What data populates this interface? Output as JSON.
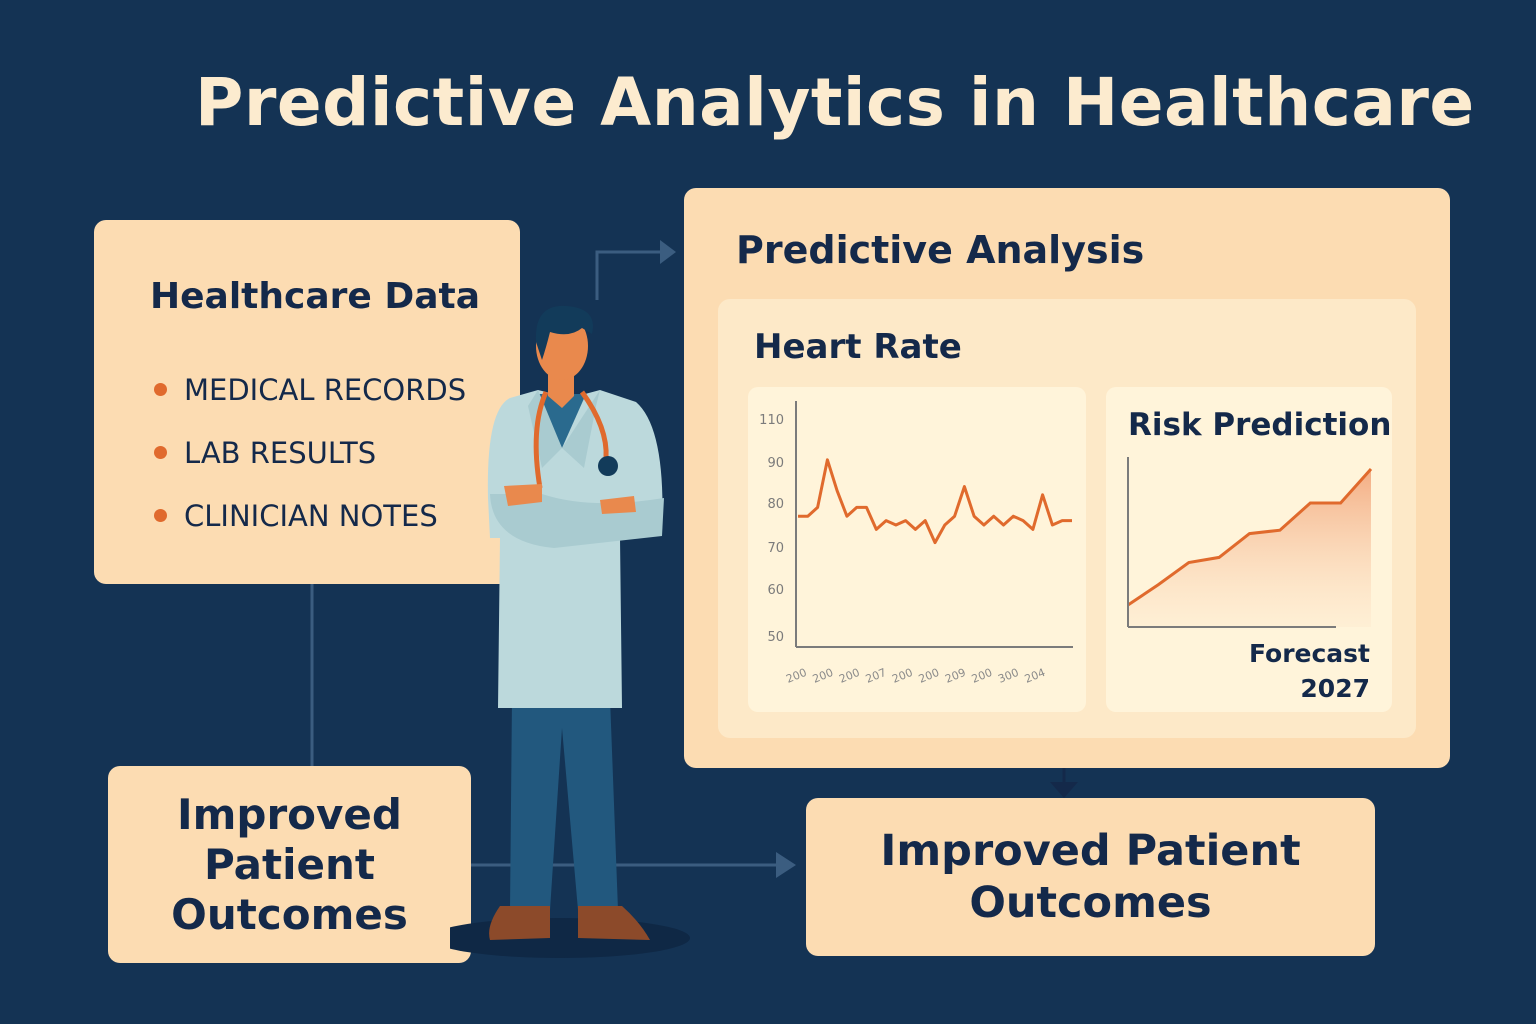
{
  "title": "Predictive Analytics in Healthcare",
  "data_card": {
    "heading": "Healthcare Data",
    "items": [
      "MEDICAL RECORDS",
      "LAB RESULTS",
      "CLINICIAN NOTES"
    ]
  },
  "analysis_card": {
    "heading": "Predictive Analysis",
    "heart_rate_heading": "Heart Rate",
    "risk_heading": "Risk Prediction",
    "forecast_label": "Forecast",
    "forecast_year": "2027"
  },
  "outcomes": {
    "left": [
      "Improved",
      "Patient",
      "Outcomes"
    ],
    "right": [
      "Improved Patient",
      "Outcomes"
    ]
  },
  "colors": {
    "background": "#143354",
    "card": "#fcdcb2",
    "accent": "#e06a2d",
    "text": "#14294a"
  },
  "chart_data": [
    {
      "type": "line",
      "y_ticks": [
        "110",
        "90",
        "80",
        "70",
        "60",
        "50"
      ],
      "x_ticks": [
        "200",
        "200",
        "200",
        "207",
        "200",
        "200",
        "209",
        "200",
        "300",
        "204"
      ],
      "values": [
        77,
        77,
        79,
        91,
        83,
        77,
        79,
        79,
        74,
        76,
        75,
        76,
        74,
        76,
        71,
        75,
        77,
        84,
        77,
        75,
        77,
        75,
        77,
        76,
        74,
        82,
        75,
        76,
        76
      ]
    },
    {
      "type": "area",
      "values": [
        10,
        22,
        35,
        38,
        52,
        54,
        70,
        70,
        90
      ]
    }
  ]
}
